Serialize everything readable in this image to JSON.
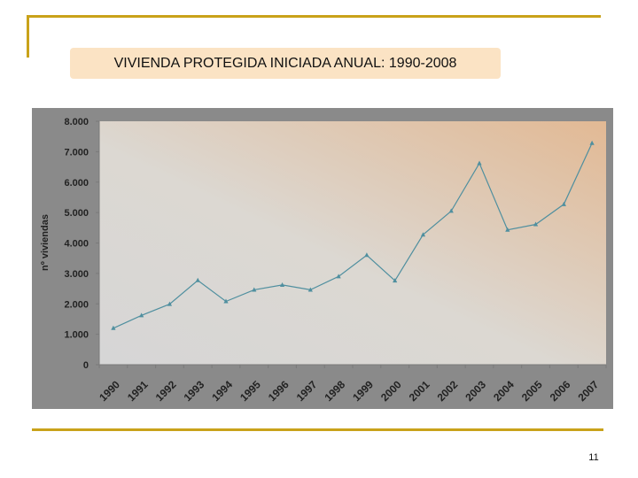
{
  "slide": {
    "title": "VIVIENDA PROTEGIDA INICIADA ANUAL: 1990-2008",
    "page_number": "11"
  },
  "colors": {
    "accent_line": "#c9a21a",
    "title_bg": "#fbe3c4",
    "panel_bg": "#8a8a8a",
    "series": "#4f8f9f"
  },
  "chart_data": {
    "type": "line",
    "title": "",
    "xlabel": "",
    "ylabel": "nº viviendas",
    "ylim": [
      0,
      8000
    ],
    "yticks": [
      0,
      1000,
      2000,
      3000,
      4000,
      5000,
      6000,
      7000,
      8000
    ],
    "ytick_labels": [
      "0",
      "1.000",
      "2.000",
      "3.000",
      "4.000",
      "5.000",
      "6.000",
      "7.000",
      "8.000"
    ],
    "categories": [
      "1990",
      "1991",
      "1992",
      "1993",
      "1994",
      "1995",
      "1996",
      "1997",
      "1998",
      "1999",
      "2000",
      "2001",
      "2002",
      "2003",
      "2004",
      "2005",
      "2006",
      "2007"
    ],
    "grid": false,
    "legend": "none",
    "series": [
      {
        "values": [
          1200,
          1620,
          1990,
          2770,
          2080,
          2460,
          2620,
          2460,
          2900,
          3600,
          2760,
          4270,
          5050,
          6620,
          4430,
          4610,
          5270,
          7280
        ]
      }
    ]
  }
}
